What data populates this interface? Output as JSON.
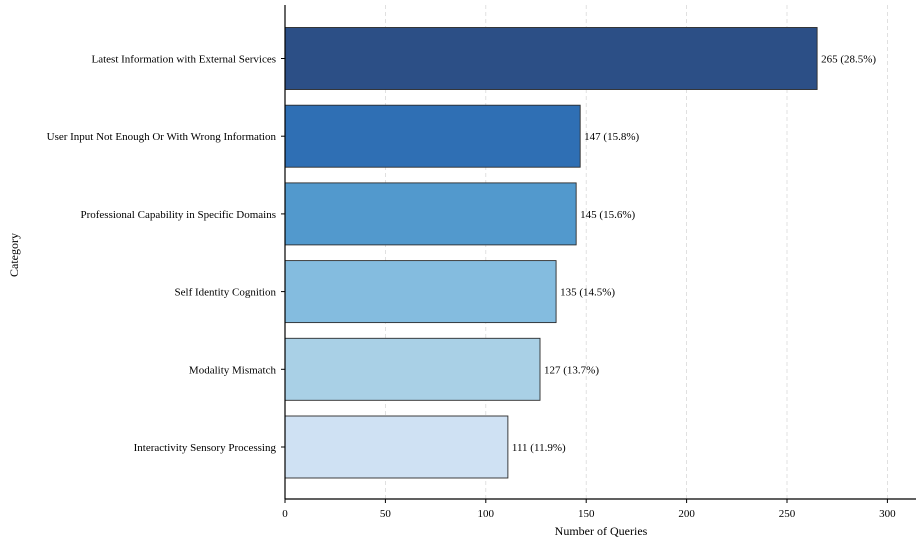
{
  "chart_data": {
    "type": "bar",
    "orientation": "horizontal",
    "title": "",
    "xlabel": "Number of Queries",
    "ylabel": "Category",
    "xlim": [
      0,
      315
    ],
    "xticks": [
      0,
      50,
      100,
      150,
      200,
      250,
      300
    ],
    "grid": "x-dashed",
    "legend": "none",
    "categories": [
      "Latest Information with External Services",
      "User Input Not Enough Or With Wrong Information",
      "Professional Capability in Specific Domains",
      "Self Identity Cognition",
      "Modality Mismatch",
      "Interactivity Sensory Processing"
    ],
    "values": [
      265,
      147,
      145,
      135,
      127,
      111
    ],
    "data_labels": [
      "265 (28.5%)",
      "147 (15.8%)",
      "145 (15.6%)",
      "135 (14.5%)",
      "127 (13.7%)",
      "111 (11.9%)"
    ],
    "colors": [
      "#2c4f86",
      "#2f6fb4",
      "#5299cd",
      "#84bcdf",
      "#a9d0e6",
      "#cfe1f3"
    ]
  }
}
